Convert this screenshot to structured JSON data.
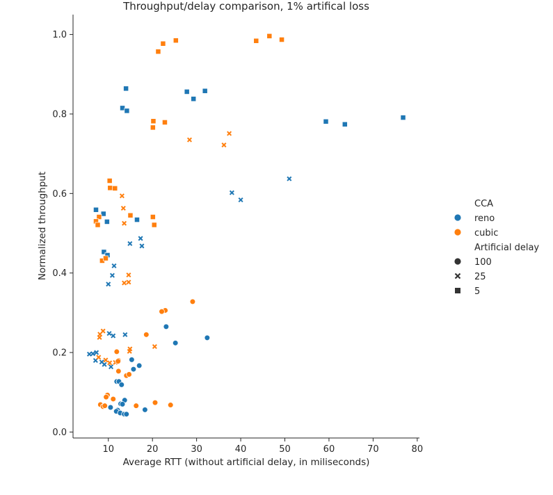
{
  "chart_data": {
    "type": "scatter",
    "title": "Throughput/delay comparison, 1% artifical loss",
    "xlabel": "Average RTT (without artificial delay, in miliseconds)",
    "ylabel": "Normalized throughput",
    "xlim": [
      2,
      80.5
    ],
    "ylim": [
      -0.015,
      1.05
    ],
    "xticks": [
      10,
      20,
      30,
      40,
      50,
      60,
      70,
      80
    ],
    "yticks": [
      0.0,
      0.2,
      0.4,
      0.6,
      0.8,
      1.0
    ],
    "grid": false,
    "legend": {
      "placement": "right",
      "hue_title": "CCA",
      "hue_entries": [
        {
          "label": "reno",
          "color": "#1f77b4"
        },
        {
          "label": "cubic",
          "color": "#ff7f0e"
        }
      ],
      "style_title": "Artificial delay",
      "style_entries": [
        {
          "label": "100",
          "marker": "circle"
        },
        {
          "label": "25",
          "marker": "x"
        },
        {
          "label": "5",
          "marker": "square"
        }
      ]
    },
    "series": [
      {
        "cca": "reno",
        "delay": "5",
        "points": [
          [
            14.0,
            0.864
          ],
          [
            13.2,
            0.815
          ],
          [
            14.2,
            0.808
          ],
          [
            27.8,
            0.856
          ],
          [
            31.9,
            0.858
          ],
          [
            29.3,
            0.838
          ],
          [
            59.3,
            0.781
          ],
          [
            63.6,
            0.774
          ],
          [
            76.8,
            0.791
          ],
          [
            7.2,
            0.559
          ],
          [
            8.9,
            0.549
          ],
          [
            9.7,
            0.529
          ],
          [
            16.5,
            0.534
          ],
          [
            9.0,
            0.453
          ],
          [
            9.8,
            0.445
          ]
        ]
      },
      {
        "cca": "cubic",
        "delay": "5",
        "points": [
          [
            25.3,
            0.985
          ],
          [
            22.4,
            0.977
          ],
          [
            21.3,
            0.957
          ],
          [
            43.5,
            0.984
          ],
          [
            46.5,
            0.996
          ],
          [
            49.3,
            0.987
          ],
          [
            20.2,
            0.782
          ],
          [
            20.1,
            0.766
          ],
          [
            22.8,
            0.779
          ],
          [
            10.3,
            0.632
          ],
          [
            10.4,
            0.614
          ],
          [
            11.5,
            0.613
          ],
          [
            7.9,
            0.541
          ],
          [
            7.2,
            0.53
          ],
          [
            7.6,
            0.521
          ],
          [
            15.0,
            0.545
          ],
          [
            20.1,
            0.541
          ],
          [
            20.4,
            0.521
          ],
          [
            8.6,
            0.431
          ],
          [
            9.4,
            0.437
          ]
        ]
      },
      {
        "cca": "reno",
        "delay": "25",
        "points": [
          [
            51.0,
            0.637
          ],
          [
            38.0,
            0.602
          ],
          [
            40.0,
            0.584
          ],
          [
            14.9,
            0.474
          ],
          [
            17.3,
            0.487
          ],
          [
            17.6,
            0.468
          ],
          [
            11.3,
            0.418
          ],
          [
            10.9,
            0.394
          ],
          [
            10.0,
            0.372
          ],
          [
            10.2,
            0.248
          ],
          [
            11.1,
            0.242
          ],
          [
            13.8,
            0.245
          ],
          [
            5.7,
            0.196
          ],
          [
            6.5,
            0.197
          ],
          [
            7.3,
            0.2
          ],
          [
            7.1,
            0.18
          ],
          [
            8.5,
            0.176
          ],
          [
            9.1,
            0.17
          ],
          [
            10.6,
            0.164
          ]
        ]
      },
      {
        "cca": "cubic",
        "delay": "25",
        "points": [
          [
            37.4,
            0.751
          ],
          [
            36.2,
            0.722
          ],
          [
            28.4,
            0.735
          ],
          [
            13.1,
            0.594
          ],
          [
            13.4,
            0.563
          ],
          [
            13.6,
            0.525
          ],
          [
            14.6,
            0.395
          ],
          [
            14.6,
            0.377
          ],
          [
            13.6,
            0.375
          ],
          [
            8.8,
            0.254
          ],
          [
            8.1,
            0.246
          ],
          [
            8.0,
            0.238
          ],
          [
            14.9,
            0.209
          ],
          [
            14.8,
            0.203
          ],
          [
            20.5,
            0.215
          ],
          [
            7.8,
            0.188
          ],
          [
            9.4,
            0.181
          ],
          [
            10.3,
            0.174
          ],
          [
            11.6,
            0.175
          ]
        ]
      },
      {
        "cca": "reno",
        "delay": "100",
        "points": [
          [
            23.1,
            0.265
          ],
          [
            25.2,
            0.224
          ],
          [
            32.4,
            0.237
          ],
          [
            15.3,
            0.182
          ],
          [
            17.0,
            0.167
          ],
          [
            15.7,
            0.158
          ],
          [
            11.9,
            0.127
          ],
          [
            12.4,
            0.127
          ],
          [
            13.0,
            0.119
          ],
          [
            13.7,
            0.08
          ],
          [
            12.8,
            0.071
          ],
          [
            13.2,
            0.07
          ],
          [
            10.5,
            0.062
          ],
          [
            12.1,
            0.055
          ],
          [
            11.8,
            0.052
          ],
          [
            12.7,
            0.048
          ],
          [
            13.6,
            0.045
          ],
          [
            14.1,
            0.045
          ],
          [
            18.3,
            0.056
          ]
        ]
      },
      {
        "cca": "cubic",
        "delay": "100",
        "points": [
          [
            29.1,
            0.328
          ],
          [
            22.9,
            0.306
          ],
          [
            22.1,
            0.303
          ],
          [
            18.6,
            0.245
          ],
          [
            11.9,
            0.202
          ],
          [
            12.3,
            0.18
          ],
          [
            12.2,
            0.178
          ],
          [
            12.3,
            0.153
          ],
          [
            14.1,
            0.142
          ],
          [
            14.7,
            0.145
          ],
          [
            9.8,
            0.093
          ],
          [
            9.5,
            0.088
          ],
          [
            11.1,
            0.083
          ],
          [
            8.2,
            0.069
          ],
          [
            8.8,
            0.064
          ],
          [
            9.2,
            0.066
          ],
          [
            16.3,
            0.066
          ],
          [
            20.6,
            0.074
          ],
          [
            24.1,
            0.068
          ]
        ]
      }
    ]
  }
}
